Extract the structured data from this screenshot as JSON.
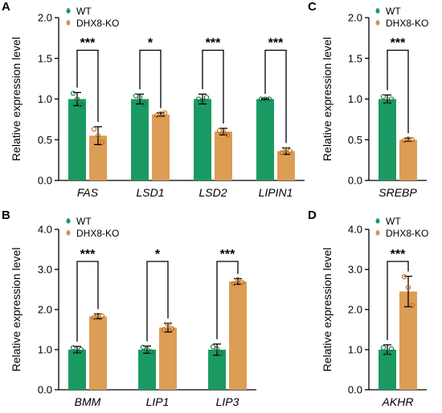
{
  "colors": {
    "wt": "#1a9a62",
    "ko": "#dc9d55",
    "point": "#c06a1c",
    "axis": "#000000"
  },
  "chart_data": [
    {
      "panel": "A",
      "type": "bar",
      "ylabel": "Relative expression level",
      "ylim": [
        0,
        2.0
      ],
      "yticks": [
        "0.0",
        "0.5",
        "1.0",
        "1.5",
        "2.0"
      ],
      "categories": [
        "FAS",
        "LSD1",
        "LSD2",
        "LIPIN1"
      ],
      "legend": [
        "WT",
        "DHX8-KO"
      ],
      "series": [
        {
          "name": "WT",
          "values": [
            1.0,
            1.0,
            1.0,
            1.0
          ],
          "errors": [
            0.08,
            0.06,
            0.06,
            0.005
          ],
          "points": [
            [
              1.07,
              1.0,
              0.93
            ],
            [
              1.04,
              1.02,
              0.94
            ],
            [
              1.0,
              0.98,
              1.02
            ],
            [
              1.0,
              1.0,
              1.0
            ]
          ]
        },
        {
          "name": "DHX8-KO",
          "values": [
            0.55,
            0.81,
            0.6,
            0.36
          ],
          "errors": [
            0.11,
            0.02,
            0.04,
            0.04
          ],
          "points": [
            [
              0.63,
              0.55,
              0.47
            ],
            [
              0.8,
              0.82,
              0.83
            ],
            [
              0.61,
              0.6,
              0.56
            ],
            [
              0.34,
              0.38,
              0.36
            ]
          ]
        }
      ],
      "significance": [
        "***",
        "*",
        "***",
        "***"
      ]
    },
    {
      "panel": "B",
      "type": "bar",
      "ylabel": "Relative expression level",
      "ylim": [
        0,
        4.0
      ],
      "yticks": [
        "0.0",
        "1.0",
        "2.0",
        "3.0",
        "4.0"
      ],
      "categories": [
        "BMM",
        "LIP1",
        "LIP3"
      ],
      "legend": [
        "WT",
        "DHX8-KO"
      ],
      "series": [
        {
          "name": "WT",
          "values": [
            1.0,
            1.0,
            1.0
          ],
          "errors": [
            0.08,
            0.09,
            0.14
          ],
          "points": [
            [
              1.05,
              0.95,
              1.0
            ],
            [
              1.06,
              1.0,
              0.95
            ],
            [
              1.07,
              1.02,
              0.9
            ]
          ]
        },
        {
          "name": "DHX8-KO",
          "values": [
            1.83,
            1.55,
            2.7
          ],
          "errors": [
            0.06,
            0.11,
            0.07
          ],
          "points": [
            [
              1.8,
              1.86,
              1.84
            ],
            [
              1.5,
              1.62,
              1.52
            ],
            [
              2.65,
              2.75,
              2.68
            ]
          ]
        }
      ],
      "significance": [
        "***",
        "*",
        "***"
      ]
    },
    {
      "panel": "C",
      "type": "bar",
      "ylabel": "Relative expression level",
      "ylim": [
        0,
        2.0
      ],
      "yticks": [
        "0.0",
        "0.5",
        "1.0",
        "1.5",
        "2.0"
      ],
      "categories": [
        "SREBP"
      ],
      "legend": [
        "WT",
        "DHX8-KO"
      ],
      "series": [
        {
          "name": "WT",
          "values": [
            1.0
          ],
          "errors": [
            0.05
          ],
          "points": [
            [
              1.03,
              0.97,
              1.0
            ]
          ]
        },
        {
          "name": "DHX8-KO",
          "values": [
            0.5
          ],
          "errors": [
            0.02
          ],
          "points": [
            [
              0.49,
              0.51,
              0.5
            ]
          ]
        }
      ],
      "significance": [
        "***"
      ]
    },
    {
      "panel": "D",
      "type": "bar",
      "ylabel": "Relative expression level",
      "ylim": [
        0,
        4.0
      ],
      "yticks": [
        "0.0",
        "1.0",
        "2.0",
        "3.0",
        "4.0"
      ],
      "categories": [
        "AKHR"
      ],
      "legend": [
        "WT",
        "DHX8-KO"
      ],
      "series": [
        {
          "name": "WT",
          "values": [
            1.0
          ],
          "errors": [
            0.12
          ],
          "points": [
            [
              1.05,
              0.92,
              1.02
            ]
          ]
        },
        {
          "name": "DHX8-KO",
          "values": [
            2.45
          ],
          "errors": [
            0.38
          ],
          "points": [
            [
              2.82,
              2.55,
              2.1
            ]
          ]
        }
      ],
      "significance": [
        "***"
      ]
    }
  ]
}
